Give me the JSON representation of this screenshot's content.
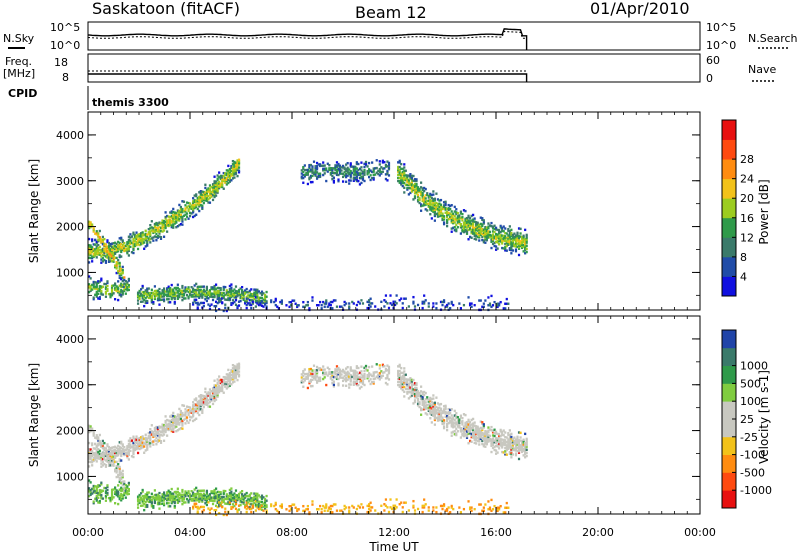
{
  "header": {
    "station": "Saskatoon (fitACF)",
    "beam": "Beam 12",
    "date": "01/Apr/2010"
  },
  "params": {
    "nsky_label": "N.Sky",
    "nsky_ticks": [
      "10^5",
      "10^0"
    ],
    "nsearch_label": "N.Search",
    "freq_label": "Freq.",
    "freq_unit": "[MHz]",
    "freq_tick": "18",
    "freq_tick_low": "8",
    "nave_label": "Nave",
    "nave_ticks": [
      "60",
      "0"
    ],
    "cpid_label": "CPID",
    "cpid_value": "themis 3300"
  },
  "colors": {
    "power": [
      "#1010e0",
      "#204ca8",
      "#3a7a6a",
      "#2f9a4a",
      "#9ccc20",
      "#f2c21a",
      "#ff8c10",
      "#ff4a10",
      "#e81010"
    ],
    "velocity": [
      "#e81010",
      "#ff4a10",
      "#ff8c10",
      "#f2c21a",
      "#c8c8c0",
      "#c8c8c0",
      "#80cc40",
      "#2f9a4a",
      "#3a7a6a",
      "#2044a8"
    ]
  },
  "chart_data": [
    {
      "type": "heatmap",
      "xlabel": "Time UT",
      "ylabel": "Slant Range [km]",
      "colorbar_label": "Power [dB]",
      "colorbar_ticks": [
        "4",
        "8",
        "12",
        "16",
        "20",
        "24",
        "28"
      ],
      "x_ticks": [
        "00:00",
        "04:00",
        "08:00",
        "12:00",
        "16:00",
        "20:00",
        "00:00"
      ],
      "y_ticks": [
        "1000",
        "2000",
        "3000",
        "4000"
      ],
      "xlim_hours": [
        0,
        24
      ],
      "ylim_km": [
        180,
        4500
      ],
      "data_end_hour": 17.2
    },
    {
      "type": "heatmap",
      "xlabel": "Time UT",
      "ylabel": "Slant Range [km]",
      "colorbar_label": "Velocity [m s-1]",
      "colorbar_ticks": [
        "-1000",
        "-500",
        "-100",
        "-25",
        "25",
        "100",
        "500",
        "1000"
      ],
      "x_ticks": [
        "00:00",
        "04:00",
        "08:00",
        "12:00",
        "16:00",
        "20:00",
        "00:00"
      ],
      "y_ticks": [
        "1000",
        "2000",
        "3000",
        "4000"
      ],
      "xlim_hours": [
        0,
        24
      ],
      "ylim_km": [
        180,
        4500
      ],
      "data_end_hour": 17.2
    }
  ]
}
